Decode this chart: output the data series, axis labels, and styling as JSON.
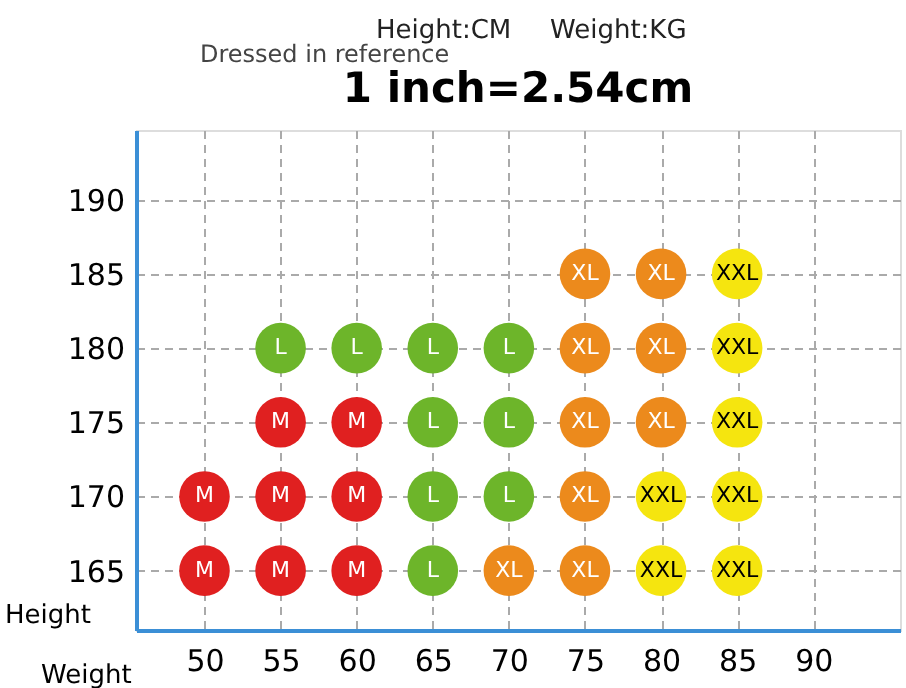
{
  "chart_data": {
    "type": "scatter",
    "title": "1 inch=2.54cm",
    "xlabel": "Weight",
    "ylabel": "Height",
    "annotations": [
      "Dressed in reference",
      "Height:CM",
      "Weight:KG"
    ],
    "xlim": [
      45.5,
      95.7
    ],
    "ylim": [
      161,
      194.7
    ],
    "xticks": [
      50,
      55,
      60,
      65,
      70,
      75,
      80,
      85,
      90
    ],
    "yticks": [
      165,
      170,
      175,
      180,
      185,
      190
    ],
    "grid": true,
    "legend": false,
    "marker": "circle",
    "series": [
      {
        "name": "M",
        "color": "#e02020",
        "x": [
          55,
          60,
          50,
          55,
          60,
          50,
          55,
          60
        ],
        "values": [
          175,
          175,
          170,
          170,
          170,
          165,
          165,
          165
        ]
      },
      {
        "name": "L",
        "color": "#6db52a",
        "x": [
          55,
          60,
          65,
          70,
          65,
          70,
          65,
          70,
          65
        ],
        "values": [
          180,
          180,
          180,
          180,
          175,
          175,
          170,
          170,
          165
        ]
      },
      {
        "name": "XL",
        "color": "#ec8a1c",
        "x": [
          75,
          80,
          75,
          80,
          75,
          80,
          75,
          70,
          75
        ],
        "values": [
          185,
          185,
          180,
          180,
          175,
          175,
          170,
          165,
          165
        ]
      },
      {
        "name": "XXL",
        "color": "#f5e50f",
        "x": [
          85,
          85,
          85,
          80,
          85,
          80,
          85
        ],
        "values": [
          185,
          180,
          175,
          170,
          170,
          165,
          165
        ]
      }
    ]
  }
}
